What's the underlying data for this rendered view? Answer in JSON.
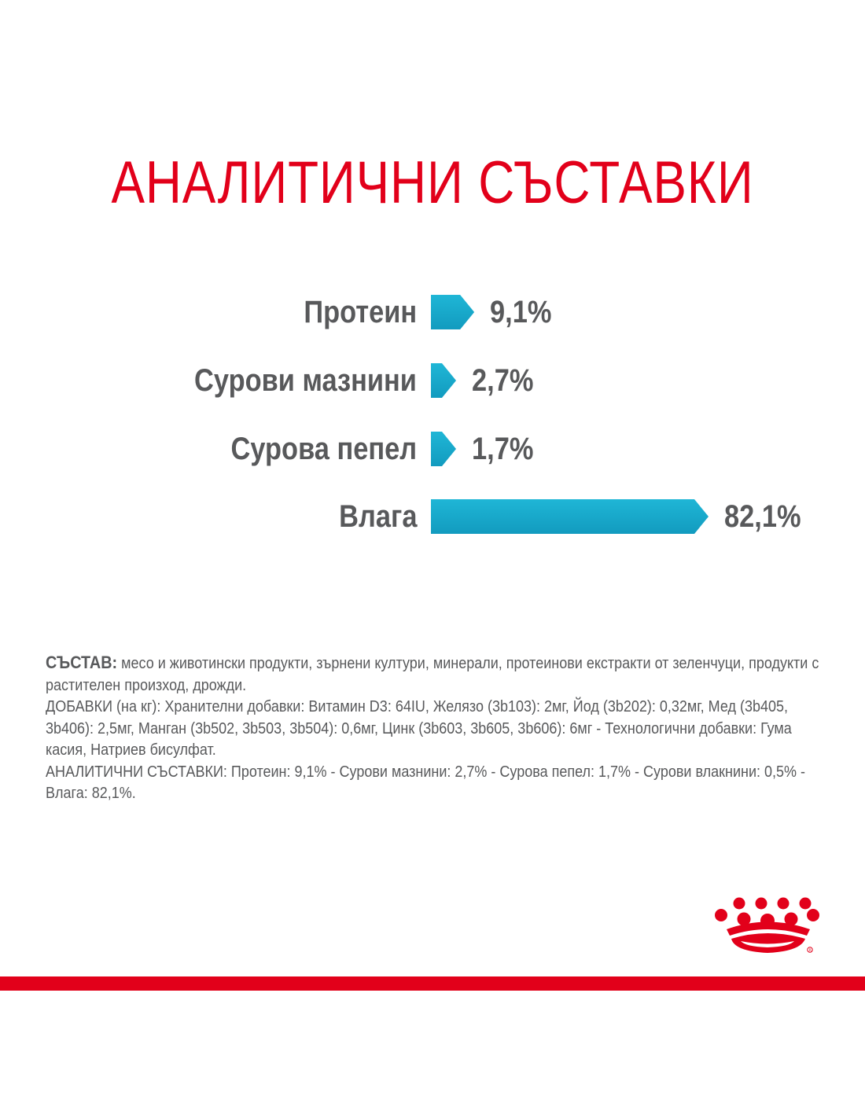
{
  "title": "АНАЛИТИЧНИ СЪСТАВКИ",
  "chart_data": {
    "type": "bar",
    "orientation": "horizontal",
    "title": "АНАЛИТИЧНИ СЪСТАВКИ",
    "categories": [
      "Протеин",
      "Сурови мазнини",
      "Сурова пепел",
      "Влага"
    ],
    "values": [
      9.1,
      2.7,
      1.7,
      82.1
    ],
    "value_labels": [
      "9,1%",
      "2,7%",
      "1,7%",
      "82,1%"
    ],
    "unit": "%",
    "xlim": [
      0,
      100
    ],
    "grid": false,
    "bar_color_start": "#1fb6d6",
    "bar_color_end": "#129bbf"
  },
  "composition": {
    "heading": "СЪСТАВ:",
    "ingredients": "месо и животински продукти, зърнени култури, минерали, протеинови екстракти от зеленчуци, продукти с растителен произход, дрожди.",
    "additives": "ДОБАВКИ (на кг): Хранителни добавки: Витамин D3: 64IU, Желязо (3b103): 2мг, Йод (3b202): 0,32мг, Мед (3b405, 3b406): 2,5мг, Манган (3b502, 3b503, 3b504): 0,6мг, Цинк (3b603, 3b605, 3b606): 6мг - Технологични добавки: Гума касия, Натриев бисулфат.",
    "analytical": "АНАЛИТИЧНИ СЪСТАВКИ: Протеин: 9,1% - Сурови мазнини: 2,7% - Сурова пепел: 1,7% - Сурови влакнини: 0,5% - Влага: 82,1%."
  },
  "colors": {
    "brand_red": "#e2001a",
    "text_gray": "#58595b"
  },
  "logo": "royal-canin-crown-icon"
}
